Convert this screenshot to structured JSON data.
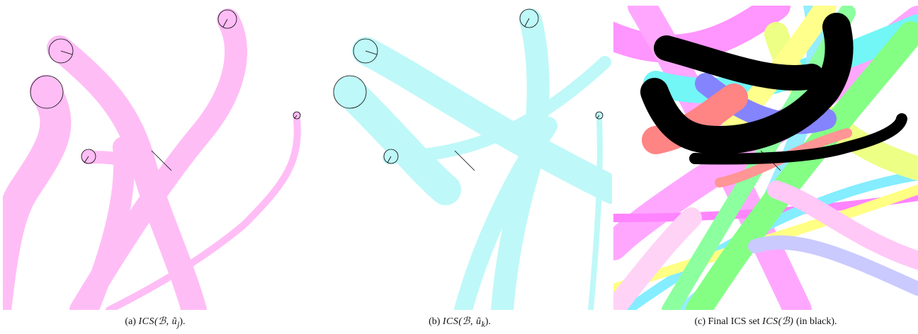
{
  "figure": {
    "panels": [
      {
        "id": "a",
        "caption_label": "(a)",
        "caption_math": "ICS(ℬ, ũ",
        "caption_sub": "j",
        "caption_tail": ").",
        "color": "#ffc0f8"
      },
      {
        "id": "b",
        "caption_label": "(b)",
        "caption_math": "ICS(ℬ, ũ",
        "caption_sub": "k",
        "caption_tail": ").",
        "color": "#bff8f8"
      },
      {
        "id": "c",
        "caption_label": "(c) Final ICS set",
        "caption_math": "ICS(ℬ)",
        "caption_tail": "(in black).",
        "color": "#000000"
      }
    ],
    "colors": {
      "pink": "#ff9cf0",
      "cyan": "#7cf5f5",
      "yellow": "#ffff40",
      "green": "#40ff40",
      "red": "#ff2020",
      "blue": "#4040ff",
      "magenta": "#ff40ff",
      "black": "#000000"
    }
  }
}
